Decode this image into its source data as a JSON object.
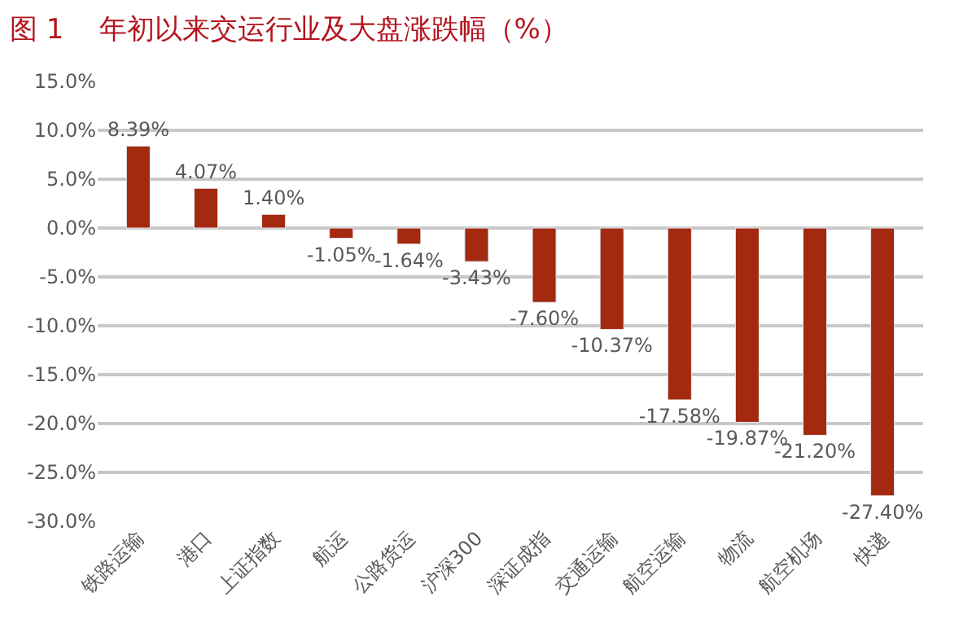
{
  "chart_data": {
    "type": "bar",
    "title": "图 1    年初以来交运行业及大盘涨跌幅（%）",
    "categories": [
      "铁路运输",
      "港口",
      "上证指数",
      "航运",
      "公路货运",
      "沪深300",
      "深证成指",
      "交通运输",
      "航空运输",
      "物流",
      "航空机场",
      "快递"
    ],
    "values": [
      8.39,
      4.07,
      1.4,
      -1.05,
      -1.64,
      -3.43,
      -7.6,
      -10.37,
      -17.58,
      -19.87,
      -21.2,
      -27.4
    ],
    "value_labels": [
      "8.39%",
      "4.07%",
      "1.40%",
      "-1.05%",
      "-1.64%",
      "-3.43%",
      "-7.60%",
      "-10.37%",
      "-17.58%",
      "-19.87%",
      "-21.20%",
      "-27.40%"
    ],
    "color": "#a3290f",
    "ylim": [
      -30,
      15
    ],
    "yticks": [
      {
        "value": -30,
        "label": "-30.0%"
      },
      {
        "value": -25,
        "label": "-25.0%"
      },
      {
        "value": -20,
        "label": "-20.0%"
      },
      {
        "value": -15,
        "label": "-15.0%"
      },
      {
        "value": -10,
        "label": "-10.0%"
      },
      {
        "value": -5,
        "label": "-5.0%"
      },
      {
        "value": 0,
        "label": "0.0%"
      },
      {
        "value": 5,
        "label": "5.0%"
      },
      {
        "value": 10,
        "label": "10.0%"
      },
      {
        "value": 15,
        "label": "15.0%"
      }
    ],
    "grid": "y",
    "legend": false
  }
}
